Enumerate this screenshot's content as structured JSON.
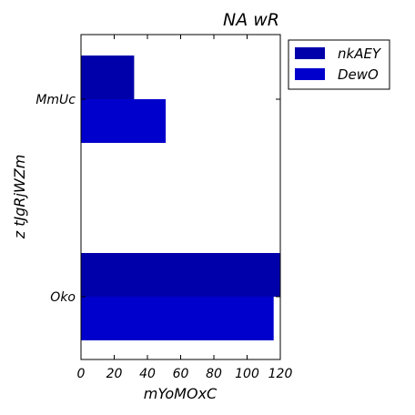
{
  "chart_data": {
    "type": "bar",
    "orientation": "horizontal",
    "title": "NA wR",
    "xlabel": "mYoMOxC",
    "ylabel": "z tJgRjWZm",
    "categories": [
      "MmUc",
      "Oko"
    ],
    "xlim": [
      0,
      120
    ],
    "xticks": [
      "0",
      "20",
      "40",
      "60",
      "80",
      "100",
      "120"
    ],
    "series": [
      {
        "name": "nkAEY",
        "values": [
          32,
          120
        ],
        "color": "#0000aa"
      },
      {
        "name": "DewO",
        "values": [
          51,
          116
        ],
        "color": "#0000cc"
      }
    ],
    "legend_position": "outside-top-right",
    "grid": false
  }
}
